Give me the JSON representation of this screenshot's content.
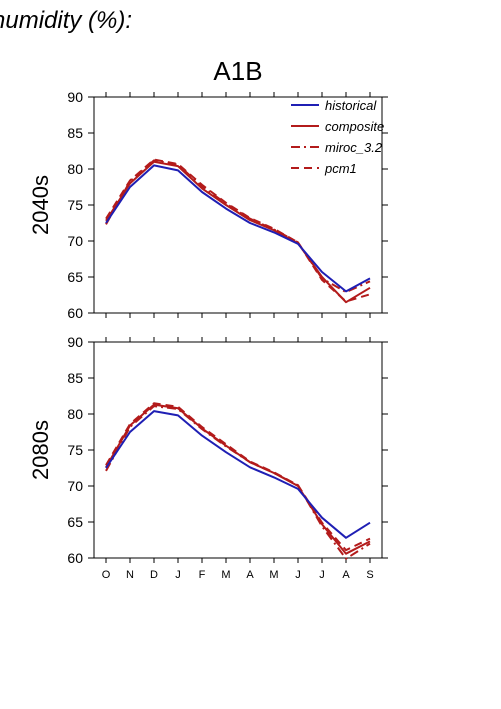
{
  "header": {
    "text": "humidity (%):"
  },
  "colors": {
    "historical": "#1f1fb4",
    "scenario": "#b31b1b",
    "axis": "#000000"
  },
  "chart_data": {
    "type": "line",
    "title": "A1B",
    "categories": [
      "O",
      "N",
      "D",
      "J",
      "F",
      "M",
      "A",
      "M",
      "J",
      "J",
      "A",
      "S"
    ],
    "ylim": [
      60,
      90
    ],
    "yticks": [
      60,
      65,
      70,
      75,
      80,
      85,
      90
    ],
    "legend": {
      "placement": "top-right",
      "entries": [
        {
          "label": "historical",
          "style": "solid",
          "color": "#1f1fb4"
        },
        {
          "label": "composite",
          "style": "solid",
          "color": "#b31b1b"
        },
        {
          "label": "miroc_3.2",
          "style": "dashdot",
          "color": "#b31b1b"
        },
        {
          "label": "pcm1",
          "style": "dashed",
          "color": "#b31b1b"
        }
      ]
    },
    "panels": [
      {
        "row_label": "2040s",
        "series": [
          {
            "name": "historical",
            "values": [
              72.5,
              77.5,
              80.5,
              79.8,
              76.8,
              74.5,
              72.5,
              71.2,
              69.6,
              65.7,
              63.0,
              64.8
            ]
          },
          {
            "name": "composite",
            "values": [
              72.8,
              78.0,
              81.0,
              80.4,
              77.3,
              75.0,
              72.9,
              71.5,
              69.7,
              65.0,
              61.5,
              63.5
            ]
          },
          {
            "name": "miroc_3.2",
            "values": [
              72.3,
              78.3,
              81.2,
              80.6,
              77.6,
              75.2,
              73.1,
              71.6,
              69.8,
              64.8,
              62.9,
              64.4
            ]
          },
          {
            "name": "pcm1",
            "values": [
              73.1,
              78.4,
              81.3,
              80.7,
              77.8,
              75.3,
              73.2,
              71.7,
              69.8,
              64.6,
              61.6,
              62.6
            ]
          }
        ]
      },
      {
        "row_label": "2080s",
        "series": [
          {
            "name": "historical",
            "values": [
              72.5,
              77.5,
              80.4,
              79.8,
              77.0,
              74.7,
              72.6,
              71.2,
              69.6,
              65.6,
              62.8,
              64.9
            ]
          },
          {
            "name": "composite",
            "values": [
              72.6,
              78.4,
              81.3,
              80.8,
              78.0,
              75.6,
              73.3,
              71.8,
              70.0,
              64.7,
              60.6,
              62.3
            ]
          },
          {
            "name": "miroc_3.2",
            "values": [
              72.1,
              78.2,
              81.1,
              80.7,
              77.9,
              75.5,
              73.3,
              71.8,
              70.1,
              64.4,
              59.9,
              62.0
            ]
          },
          {
            "name": "pcm1",
            "values": [
              72.9,
              78.6,
              81.5,
              81.0,
              78.2,
              75.8,
              73.4,
              71.9,
              70.1,
              64.9,
              61.1,
              62.7
            ]
          }
        ]
      }
    ]
  }
}
